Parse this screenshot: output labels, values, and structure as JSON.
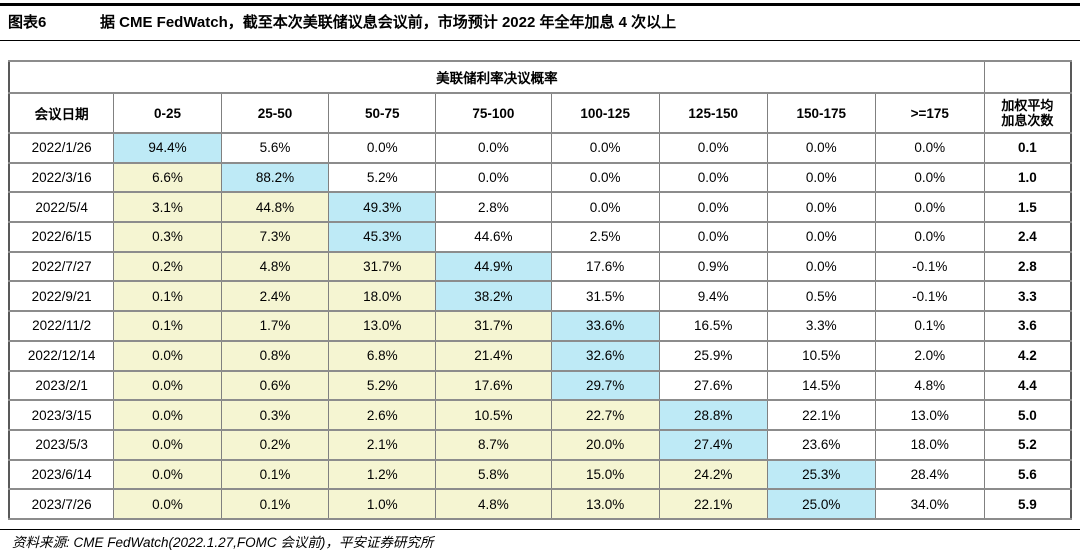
{
  "figure": {
    "label": "图表6",
    "title": "据 CME FedWatch，截至本次美联储议息会议前，市场预计 2022 年全年加息 4 次以上"
  },
  "chart_data": {
    "type": "table",
    "title": "美联储利率决议概率",
    "row_header": "会议日期",
    "rate_buckets": [
      "0-25",
      "25-50",
      "50-75",
      "75-100",
      "100-125",
      "125-150",
      "150-175",
      ">=175"
    ],
    "weighted_avg_label": [
      "加权平均",
      "加息次数"
    ],
    "rows": [
      {
        "date": "2022/1/26",
        "values": [
          "94.4%",
          "5.6%",
          "0.0%",
          "0.0%",
          "0.0%",
          "0.0%",
          "0.0%",
          "0.0%"
        ],
        "peak": 0,
        "weighted": "0.1"
      },
      {
        "date": "2022/3/16",
        "values": [
          "6.6%",
          "88.2%",
          "5.2%",
          "0.0%",
          "0.0%",
          "0.0%",
          "0.0%",
          "0.0%"
        ],
        "peak": 1,
        "weighted": "1.0"
      },
      {
        "date": "2022/5/4",
        "values": [
          "3.1%",
          "44.8%",
          "49.3%",
          "2.8%",
          "0.0%",
          "0.0%",
          "0.0%",
          "0.0%"
        ],
        "peak": 2,
        "weighted": "1.5"
      },
      {
        "date": "2022/6/15",
        "values": [
          "0.3%",
          "7.3%",
          "45.3%",
          "44.6%",
          "2.5%",
          "0.0%",
          "0.0%",
          "0.0%"
        ],
        "peak": 2,
        "weighted": "2.4"
      },
      {
        "date": "2022/7/27",
        "values": [
          "0.2%",
          "4.8%",
          "31.7%",
          "44.9%",
          "17.6%",
          "0.9%",
          "0.0%",
          "-0.1%"
        ],
        "peak": 3,
        "weighted": "2.8"
      },
      {
        "date": "2022/9/21",
        "values": [
          "0.1%",
          "2.4%",
          "18.0%",
          "38.2%",
          "31.5%",
          "9.4%",
          "0.5%",
          "-0.1%"
        ],
        "peak": 3,
        "weighted": "3.3"
      },
      {
        "date": "2022/11/2",
        "values": [
          "0.1%",
          "1.7%",
          "13.0%",
          "31.7%",
          "33.6%",
          "16.5%",
          "3.3%",
          "0.1%"
        ],
        "peak": 4,
        "weighted": "3.6"
      },
      {
        "date": "2022/12/14",
        "values": [
          "0.0%",
          "0.8%",
          "6.8%",
          "21.4%",
          "32.6%",
          "25.9%",
          "10.5%",
          "2.0%"
        ],
        "peak": 4,
        "weighted": "4.2"
      },
      {
        "date": "2023/2/1",
        "values": [
          "0.0%",
          "0.6%",
          "5.2%",
          "17.6%",
          "29.7%",
          "27.6%",
          "14.5%",
          "4.8%"
        ],
        "peak": 4,
        "weighted": "4.4"
      },
      {
        "date": "2023/3/15",
        "values": [
          "0.0%",
          "0.3%",
          "2.6%",
          "10.5%",
          "22.7%",
          "28.8%",
          "22.1%",
          "13.0%"
        ],
        "peak": 5,
        "weighted": "5.0"
      },
      {
        "date": "2023/5/3",
        "values": [
          "0.0%",
          "0.2%",
          "2.1%",
          "8.7%",
          "20.0%",
          "27.4%",
          "23.6%",
          "18.0%"
        ],
        "peak": 5,
        "weighted": "5.2"
      },
      {
        "date": "2023/6/14",
        "values": [
          "0.0%",
          "0.1%",
          "1.2%",
          "5.8%",
          "15.0%",
          "24.2%",
          "25.3%",
          "28.4%"
        ],
        "peak": 6,
        "weighted": "5.6"
      },
      {
        "date": "2023/7/26",
        "values": [
          "0.0%",
          "0.1%",
          "1.0%",
          "4.8%",
          "13.0%",
          "22.1%",
          "25.0%",
          "34.0%"
        ],
        "peak": 6,
        "weighted": "5.9"
      }
    ]
  },
  "footer": {
    "source": "资料来源: CME FedWatch(2022.1.27,FOMC 会议前)，平安证券研究所"
  },
  "colors": {
    "peak_highlight": "#BEEAF6",
    "below_highlight": "#F5F5D2",
    "grid_line": "#8c8c8c",
    "rule_line": "#000000"
  }
}
